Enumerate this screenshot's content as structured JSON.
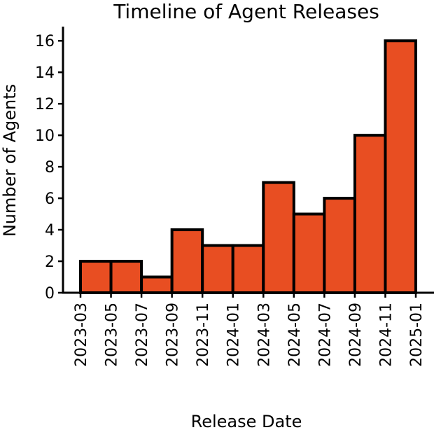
{
  "chart_data": {
    "type": "histogram",
    "title": "Timeline of Agent Releases",
    "x_label": "Release Date",
    "y_label": "Number of Agents",
    "bins": [
      "2023-03",
      "2023-05",
      "2023-07",
      "2023-09",
      "2023-11",
      "2024-01",
      "2024-03",
      "2024-05",
      "2024-07",
      "2024-09",
      "2024-11",
      "2025-01"
    ],
    "values": [
      2,
      2,
      1,
      4,
      3,
      3,
      7,
      5,
      6,
      10,
      16
    ],
    "color": "#e84e22",
    "edge_color": "#000000",
    "ylim": [
      0,
      16.9
    ],
    "yticks": [
      0,
      2,
      4,
      6,
      8,
      10,
      12,
      14,
      16
    ],
    "grid": false
  }
}
